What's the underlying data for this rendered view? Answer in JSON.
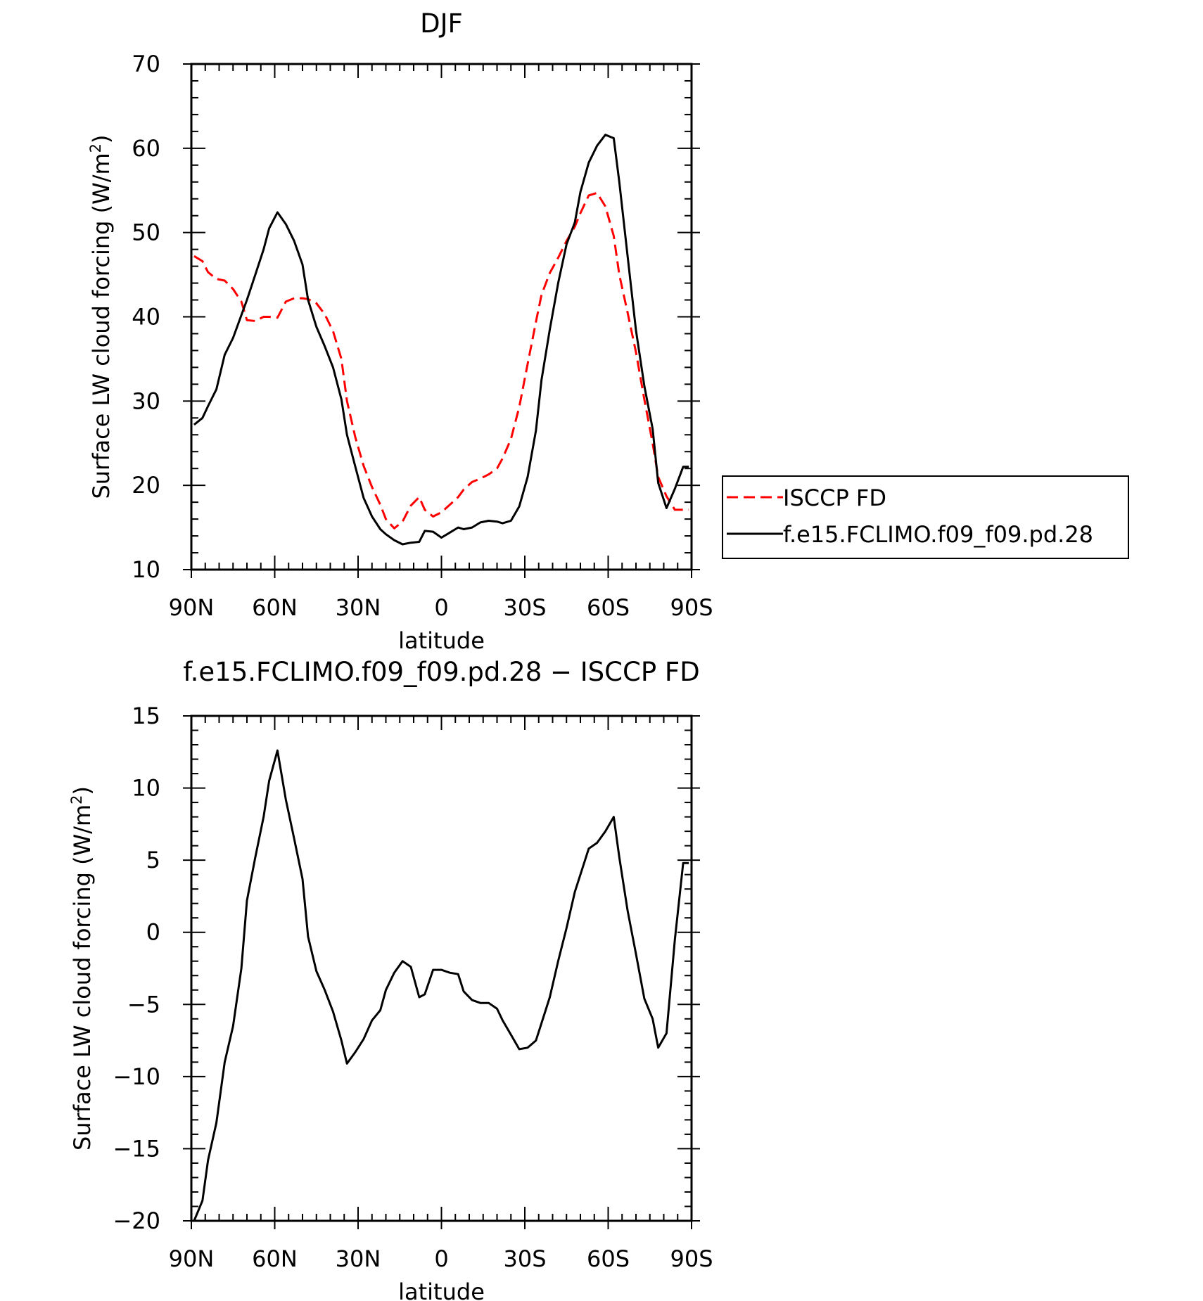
{
  "chart_data": [
    {
      "type": "line",
      "title": "DJF",
      "xlabel": "latitude",
      "ylabel": "Surface LW cloud forcing (W/m²)",
      "ylabel_main": "Surface LW cloud forcing (W/m",
      "ylabel_sup": "2",
      "ylabel_close": ")",
      "xlim": [
        90,
        -90
      ],
      "ylim": [
        10,
        70
      ],
      "x_ticks": [
        90,
        60,
        30,
        0,
        -30,
        -60,
        -90
      ],
      "x_tick_labels": [
        "90N",
        "60N",
        "30N",
        "0",
        "30S",
        "60S",
        "90S"
      ],
      "y_ticks": [
        10,
        20,
        30,
        40,
        50,
        60,
        70
      ],
      "y_tick_labels": [
        "10",
        "20",
        "30",
        "40",
        "50",
        "60",
        "70"
      ],
      "grid": false,
      "legend_position": "right",
      "series": [
        {
          "name": "ISCCP FD",
          "color": "#ff0000",
          "dash": "dashed",
          "x": [
            89,
            86,
            84,
            81,
            78,
            75,
            72,
            70,
            67,
            64,
            62,
            59,
            56,
            53,
            50,
            48,
            45,
            42,
            39,
            36,
            34,
            31,
            28,
            25,
            22,
            20,
            17,
            14,
            11,
            8,
            6,
            3,
            0,
            -3,
            -6,
            -8,
            -11,
            -14,
            -17,
            -20,
            -22,
            -25,
            -28,
            -31,
            -34,
            -36,
            -39,
            -42,
            -45,
            -48,
            -50,
            -53,
            -56,
            -59,
            -62,
            -64,
            -67,
            -70,
            -73,
            -76,
            -78,
            -81,
            -84,
            -87,
            -89
          ],
          "y": [
            47.2,
            46.6,
            45.3,
            44.5,
            44.3,
            43.3,
            41.8,
            39.6,
            39.5,
            40.0,
            40.0,
            39.9,
            41.8,
            42.2,
            42.2,
            42.1,
            41.6,
            40.3,
            38.3,
            35.0,
            30.0,
            25.7,
            22.3,
            19.8,
            17.7,
            16.0,
            14.9,
            15.7,
            17.6,
            18.6,
            17.1,
            16.3,
            16.8,
            17.7,
            18.6,
            19.5,
            20.4,
            20.8,
            21.3,
            22.0,
            23.2,
            25.5,
            29.3,
            34.4,
            39.4,
            42.6,
            45.2,
            47.0,
            49.0,
            50.7,
            52.3,
            54.4,
            54.7,
            53.1,
            49.6,
            45.0,
            40.5,
            35.8,
            30.2,
            25.0,
            21.0,
            18.7,
            17.1,
            17.1,
            17.1
          ]
        },
        {
          "name": "f.e15.FCLIMO.f09_f09.pd.28",
          "color": "#000000",
          "dash": "solid",
          "x": [
            89,
            86,
            84,
            81,
            78,
            75,
            72,
            70,
            67,
            64,
            62,
            59,
            56,
            53,
            50,
            48,
            45,
            42,
            39,
            36,
            34,
            31,
            28,
            25,
            22,
            20,
            17,
            14,
            11,
            8,
            6,
            3,
            0,
            -3,
            -6,
            -8,
            -11,
            -14,
            -17,
            -20,
            -22,
            -25,
            -28,
            -31,
            -34,
            -36,
            -39,
            -42,
            -45,
            -48,
            -50,
            -53,
            -56,
            -59,
            -62,
            -64,
            -67,
            -70,
            -73,
            -76,
            -78,
            -81,
            -84,
            -87,
            -89
          ],
          "y": [
            27.2,
            28.0,
            29.4,
            31.4,
            35.5,
            37.5,
            40.2,
            42.0,
            45.0,
            48.0,
            50.5,
            52.4,
            51.0,
            49.0,
            46.2,
            42.0,
            38.8,
            36.5,
            34.0,
            30.2,
            26.0,
            22.2,
            18.5,
            16.3,
            14.8,
            14.2,
            13.5,
            13.0,
            13.2,
            13.3,
            14.6,
            14.5,
            13.8,
            14.4,
            15.0,
            14.8,
            15.0,
            15.6,
            15.8,
            15.7,
            15.5,
            15.8,
            17.5,
            21.0,
            26.5,
            32.5,
            38.5,
            44.0,
            48.6,
            51.2,
            54.8,
            58.3,
            60.3,
            61.6,
            61.2,
            56.0,
            47.2,
            38.4,
            31.8,
            26.7,
            20.3,
            17.3,
            19.6,
            22.2,
            22.2
          ]
        }
      ]
    },
    {
      "type": "line",
      "title": "f.e15.FCLIMO.f09_f09.pd.28 − ISCCP FD",
      "xlabel": "latitude",
      "ylabel": "Surface LW cloud forcing (W/m²)",
      "ylabel_main": "Surface LW cloud forcing (W/m",
      "ylabel_sup": "2",
      "ylabel_close": ")",
      "xlim": [
        90,
        -90
      ],
      "ylim": [
        -20,
        15
      ],
      "x_ticks": [
        90,
        60,
        30,
        0,
        -30,
        -60,
        -90
      ],
      "x_tick_labels": [
        "90N",
        "60N",
        "30N",
        "0",
        "30S",
        "60S",
        "90S"
      ],
      "y_ticks": [
        -20,
        -15,
        -10,
        -5,
        0,
        5,
        10,
        15
      ],
      "y_tick_labels": [
        "−20",
        "−15",
        "−10",
        "−5",
        "0",
        "5",
        "10",
        "15"
      ],
      "grid": false,
      "series": [
        {
          "color": "#000000",
          "dash": "solid",
          "x": [
            89,
            86,
            84,
            81,
            78,
            75,
            72,
            70,
            67,
            64,
            62,
            59,
            56,
            53,
            50,
            48,
            45,
            42,
            39,
            36,
            34,
            31,
            28,
            25,
            22,
            20,
            17,
            14,
            11,
            8,
            6,
            3,
            0,
            -3,
            -6,
            -8,
            -11,
            -14,
            -17,
            -20,
            -22,
            -25,
            -28,
            -31,
            -34,
            -36,
            -39,
            -42,
            -45,
            -48,
            -50,
            -53,
            -56,
            -59,
            -62,
            -64,
            -67,
            -70,
            -73,
            -76,
            -78,
            -81,
            -84,
            -87,
            -89
          ],
          "y": [
            -20.0,
            -18.6,
            -15.8,
            -13.2,
            -9.0,
            -6.5,
            -2.5,
            2.2,
            5.2,
            8.0,
            10.5,
            12.6,
            9.2,
            6.5,
            3.7,
            -0.3,
            -2.7,
            -4.0,
            -5.5,
            -7.5,
            -9.1,
            -8.3,
            -7.4,
            -6.1,
            -5.4,
            -4.0,
            -2.8,
            -2.0,
            -2.4,
            -4.5,
            -4.3,
            -2.6,
            -2.6,
            -2.8,
            -2.9,
            -4.1,
            -4.7,
            -4.9,
            -4.9,
            -5.3,
            -6.1,
            -7.1,
            -8.1,
            -8.0,
            -7.5,
            -6.3,
            -4.5,
            -2.0,
            0.3,
            2.8,
            4.0,
            5.8,
            6.2,
            7.0,
            8.0,
            5.2,
            1.5,
            -1.5,
            -4.6,
            -6.0,
            -8.0,
            -7.0,
            -0.5,
            4.8,
            4.8
          ]
        }
      ]
    }
  ]
}
